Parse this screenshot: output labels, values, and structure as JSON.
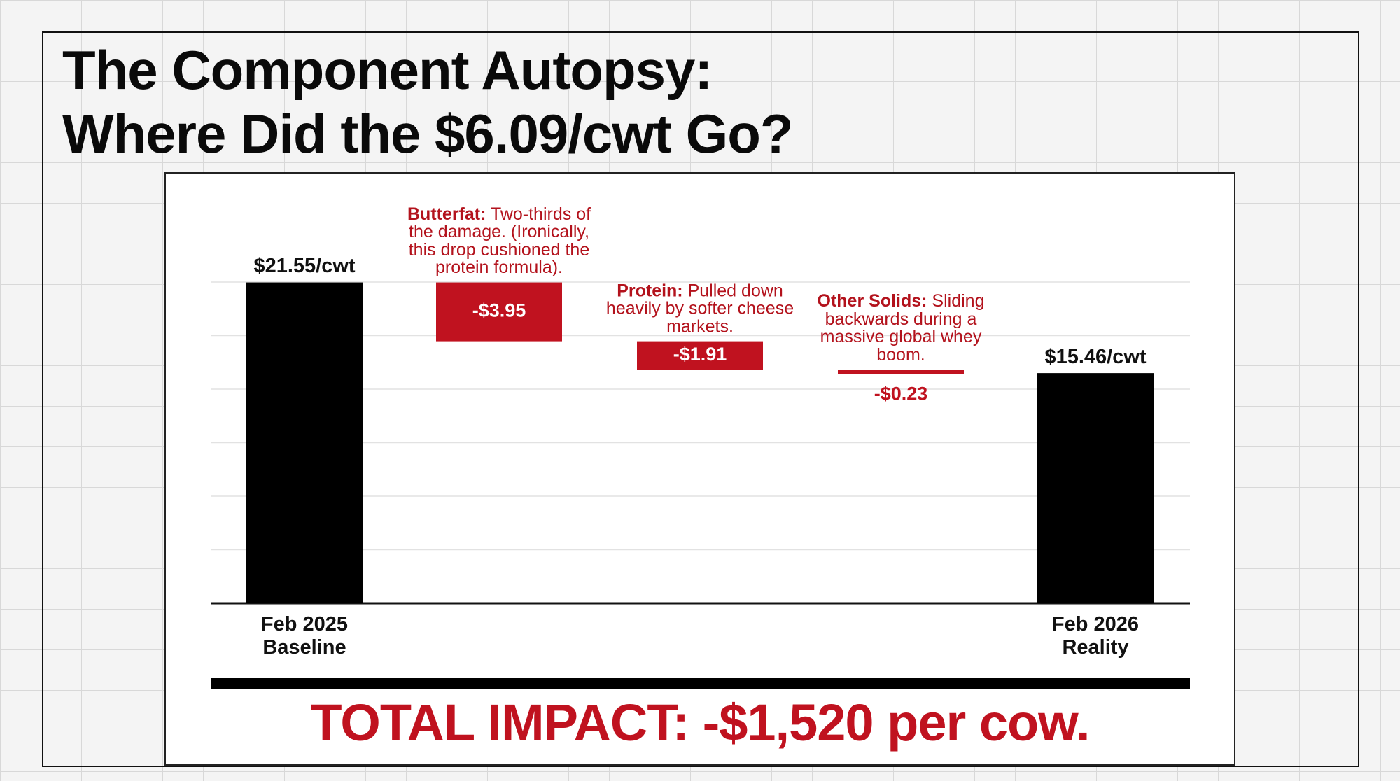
{
  "title_lines": [
    "The Component Autopsy:",
    "Where Did the $6.09/cwt Go?"
  ],
  "chart_data": {
    "type": "waterfall",
    "categories": [
      "Feb 2025 Baseline",
      null,
      null,
      null,
      "Feb 2026 Reality"
    ],
    "measures": [
      "absolute",
      "relative",
      "relative",
      "relative",
      "total"
    ],
    "values": [
      21.55,
      -3.95,
      -1.91,
      -0.23,
      15.46
    ],
    "value_labels": [
      "$21.55/cwt",
      "-$3.95",
      "-$1.91",
      "-$0.23",
      "$15.46/cwt"
    ],
    "colors": [
      "#000000",
      "#c0121f",
      "#c0121f",
      "#c0121f",
      "#000000"
    ],
    "annotations": [
      null,
      {
        "label": "Butterfat:",
        "text": "Two-thirds of the damage. (Ironically, this drop cushioned the protein formula)."
      },
      {
        "label": "Protein:",
        "text": "Pulled down heavily by softer cheese markets."
      },
      {
        "label": "Other Solids:",
        "text": "Sliding backwards during a massive global whey boom."
      },
      null
    ],
    "ylim": [
      0,
      22
    ],
    "footer": "TOTAL IMPACT: -$1,520 per cow."
  }
}
